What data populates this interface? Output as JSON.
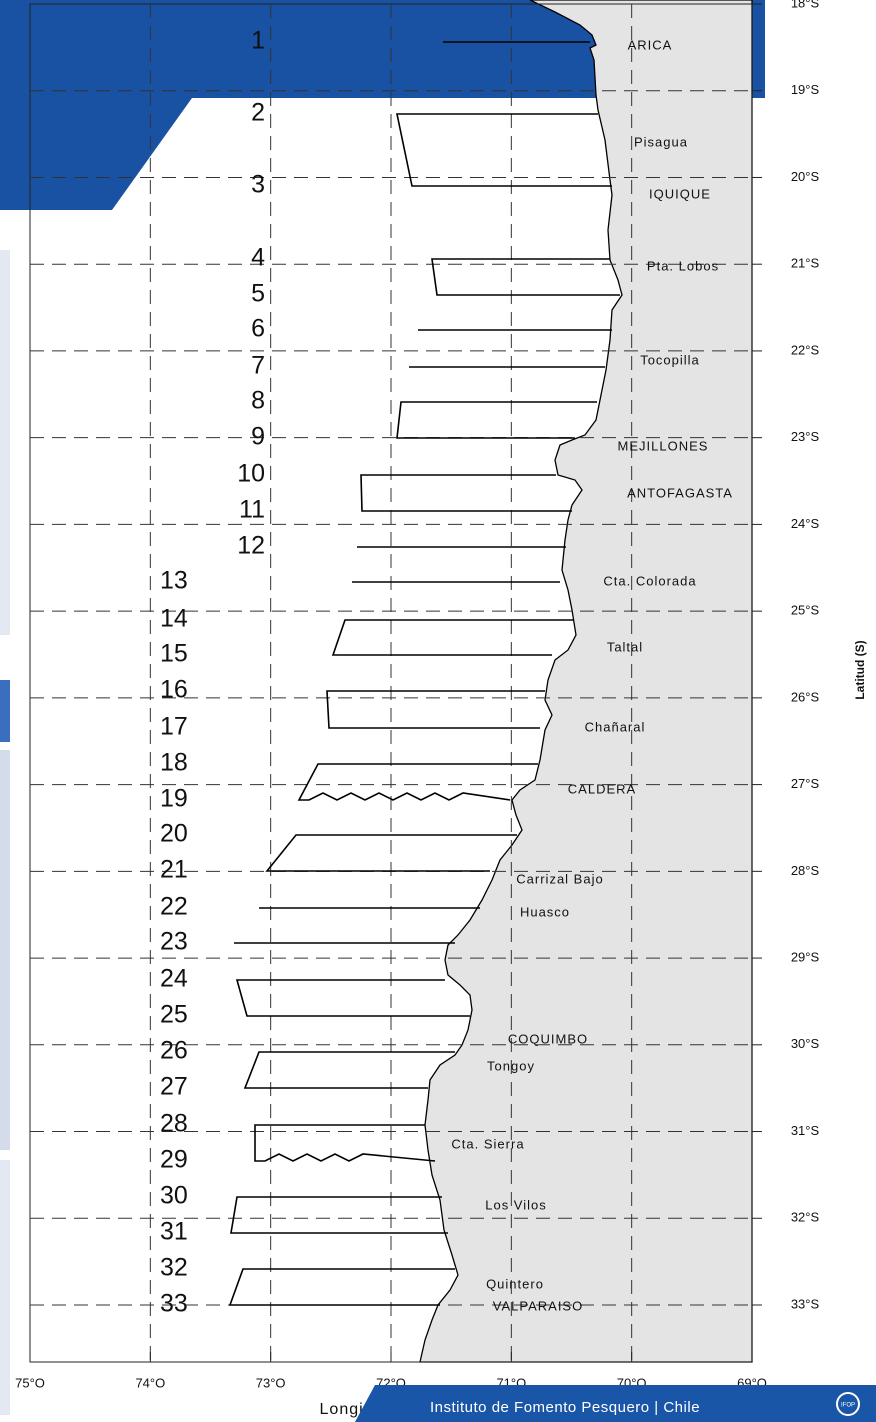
{
  "map": {
    "y_axis_label": "Latitud (S)",
    "x_axis_label": "Longitud (O)",
    "lon_ticks": [
      {
        "value": -75,
        "label": "75°O"
      },
      {
        "value": -74,
        "label": "74°O"
      },
      {
        "value": -73,
        "label": "73°O"
      },
      {
        "value": -72,
        "label": "72°O"
      },
      {
        "value": -71,
        "label": "71°O"
      },
      {
        "value": -70,
        "label": "70°O"
      },
      {
        "value": -69,
        "label": "69°O"
      }
    ],
    "lat_ticks": [
      {
        "value": -18,
        "label": "18°S"
      },
      {
        "value": -19,
        "label": "19°S"
      },
      {
        "value": -20,
        "label": "20°S"
      },
      {
        "value": -21,
        "label": "21°S"
      },
      {
        "value": -22,
        "label": "22°S"
      },
      {
        "value": -23,
        "label": "23°S"
      },
      {
        "value": -24,
        "label": "24°S"
      },
      {
        "value": -25,
        "label": "25°S"
      },
      {
        "value": -26,
        "label": "26°S"
      },
      {
        "value": -27,
        "label": "27°S"
      },
      {
        "value": -28,
        "label": "28°S"
      },
      {
        "value": -29,
        "label": "29°S"
      },
      {
        "value": -30,
        "label": "30°S"
      },
      {
        "value": -31,
        "label": "31°S"
      },
      {
        "value": -32,
        "label": "32°S"
      },
      {
        "value": -33,
        "label": "33°S"
      }
    ],
    "transects": [
      "1",
      "2",
      "3",
      "4",
      "5",
      "6",
      "7",
      "8",
      "9",
      "10",
      "11",
      "12",
      "13",
      "14",
      "15",
      "16",
      "17",
      "18",
      "19",
      "20",
      "21",
      "22",
      "23",
      "24",
      "25",
      "26",
      "27",
      "28",
      "29",
      "30",
      "31",
      "32",
      "33"
    ],
    "places": [
      "ARICA",
      "Pisagua",
      "IQUIQUE",
      "Pta. Lobos",
      "Tocopilla",
      "MEJILLONES",
      "ANTOFAGASTA",
      "Cta. Colorada",
      "Taltal",
      "Chañaral",
      "CALDERA",
      "Carrizal Bajo",
      "Huasco",
      "COQUIMBO",
      "Tongoy",
      "Cta. Sierra",
      "Los Vilos",
      "Quintero",
      "VALPARAISO"
    ]
  },
  "footer": {
    "text": "Instituto de Fomento Pesquero | Chile",
    "logo": "IFOP"
  }
}
